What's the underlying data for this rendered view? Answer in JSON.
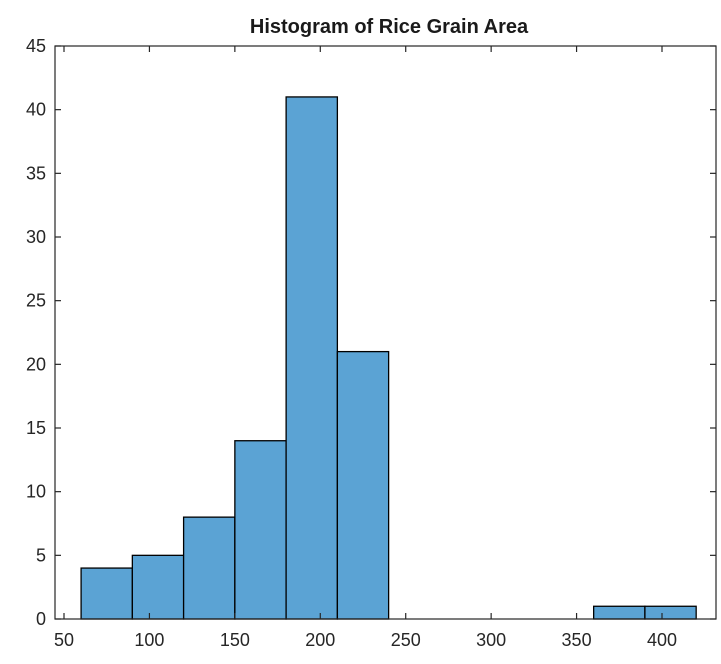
{
  "chart_data": {
    "type": "bar",
    "title": "Histogram of Rice Grain Area",
    "xlabel": "",
    "ylabel": "",
    "xlim": [
      50,
      420
    ],
    "ylim": [
      0,
      45
    ],
    "x_ticks": [
      50,
      100,
      150,
      200,
      250,
      300,
      350,
      400
    ],
    "y_ticks": [
      0,
      5,
      10,
      15,
      20,
      25,
      30,
      35,
      40,
      45
    ],
    "grid": false,
    "legend": "none",
    "bar_color": "#5ba3d4",
    "bins": [
      {
        "start": 60,
        "end": 90,
        "count": 4
      },
      {
        "start": 90,
        "end": 120,
        "count": 5
      },
      {
        "start": 120,
        "end": 150,
        "count": 8
      },
      {
        "start": 150,
        "end": 180,
        "count": 14
      },
      {
        "start": 180,
        "end": 210,
        "count": 41
      },
      {
        "start": 210,
        "end": 240,
        "count": 21
      },
      {
        "start": 240,
        "end": 270,
        "count": 0
      },
      {
        "start": 270,
        "end": 300,
        "count": 0
      },
      {
        "start": 300,
        "end": 330,
        "count": 0
      },
      {
        "start": 330,
        "end": 360,
        "count": 0
      },
      {
        "start": 360,
        "end": 390,
        "count": 1
      },
      {
        "start": 390,
        "end": 420,
        "count": 1
      }
    ]
  }
}
